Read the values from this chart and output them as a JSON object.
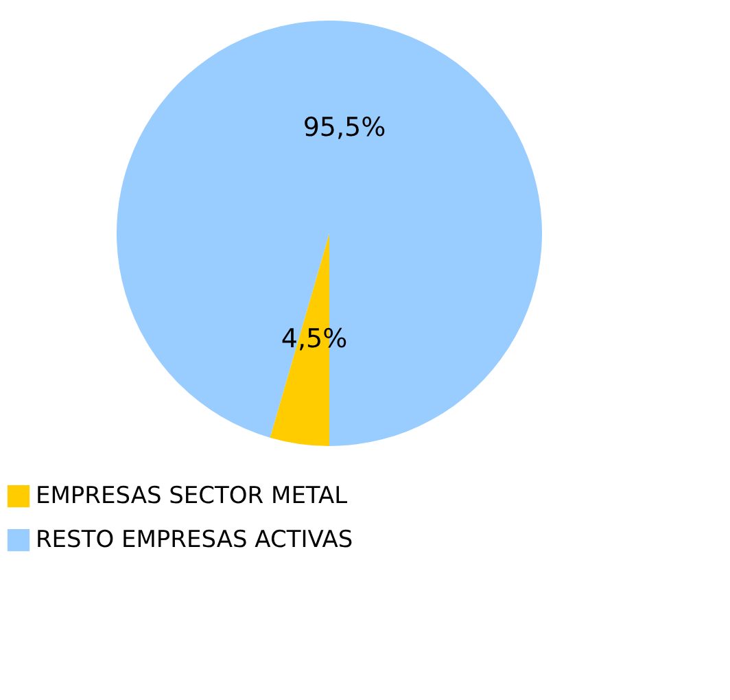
{
  "chart_data": {
    "type": "pie",
    "categories": [
      "EMPRESAS SECTOR METAL",
      "RESTO EMPRESAS ACTIVAS"
    ],
    "values": [
      4.5,
      95.5
    ],
    "colors": [
      "#ffcc00",
      "#99ccff"
    ],
    "value_labels": [
      "4,5%",
      "95,5%"
    ],
    "legend": "bottom"
  }
}
